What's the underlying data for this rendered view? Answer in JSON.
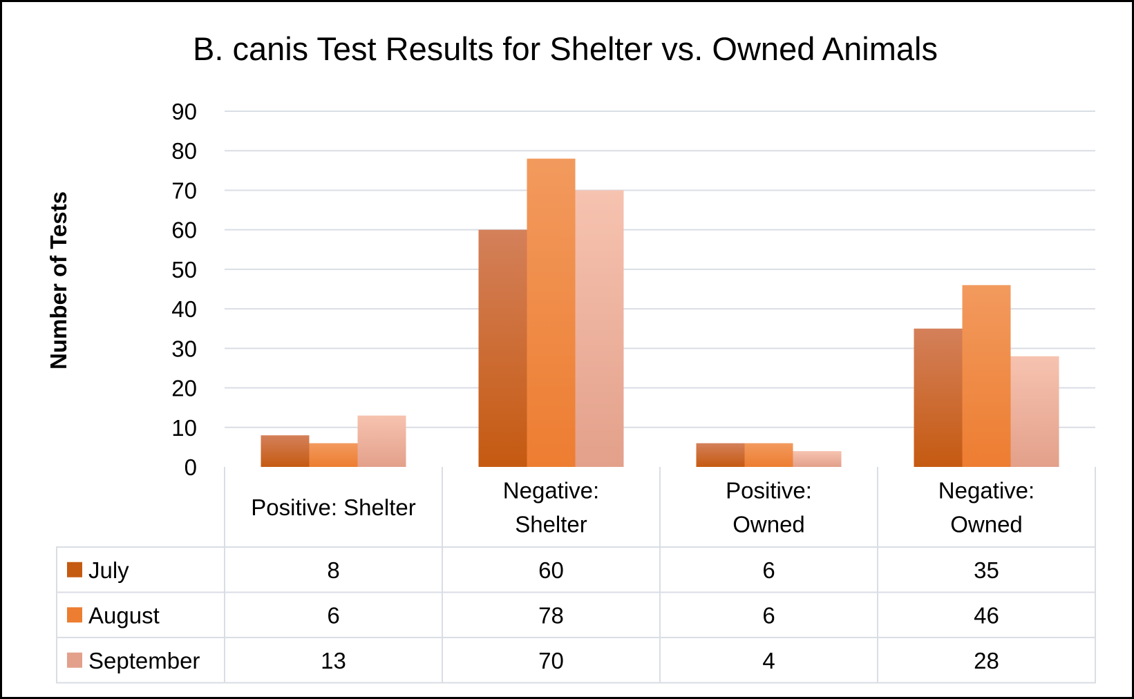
{
  "chart_data": {
    "type": "bar",
    "title": "B. canis Test Results for Shelter vs. Owned Animals",
    "xlabel": "",
    "ylabel": "Number of Tests",
    "ylim": [
      0,
      90
    ],
    "yticks": [
      "0",
      "10",
      "20",
      "30",
      "40",
      "50",
      "60",
      "70",
      "80",
      "90"
    ],
    "grid": true,
    "legend": "data-table",
    "categories": [
      [
        "Positive: Shelter"
      ],
      [
        "Negative:",
        "Shelter"
      ],
      [
        "Positive:",
        "Owned"
      ],
      [
        "Negative:",
        "Owned"
      ]
    ],
    "series": [
      {
        "name": "July",
        "values": [
          8,
          60,
          6,
          35
        ],
        "color": "#c55a11",
        "color_top": "#d4805a"
      },
      {
        "name": "August",
        "values": [
          6,
          78,
          6,
          46
        ],
        "color": "#ed7d31",
        "color_top": "#f29a5e"
      },
      {
        "name": "September",
        "values": [
          13,
          70,
          4,
          28
        ],
        "color": "#e3a08a",
        "color_top": "#f6c3b0"
      }
    ]
  }
}
